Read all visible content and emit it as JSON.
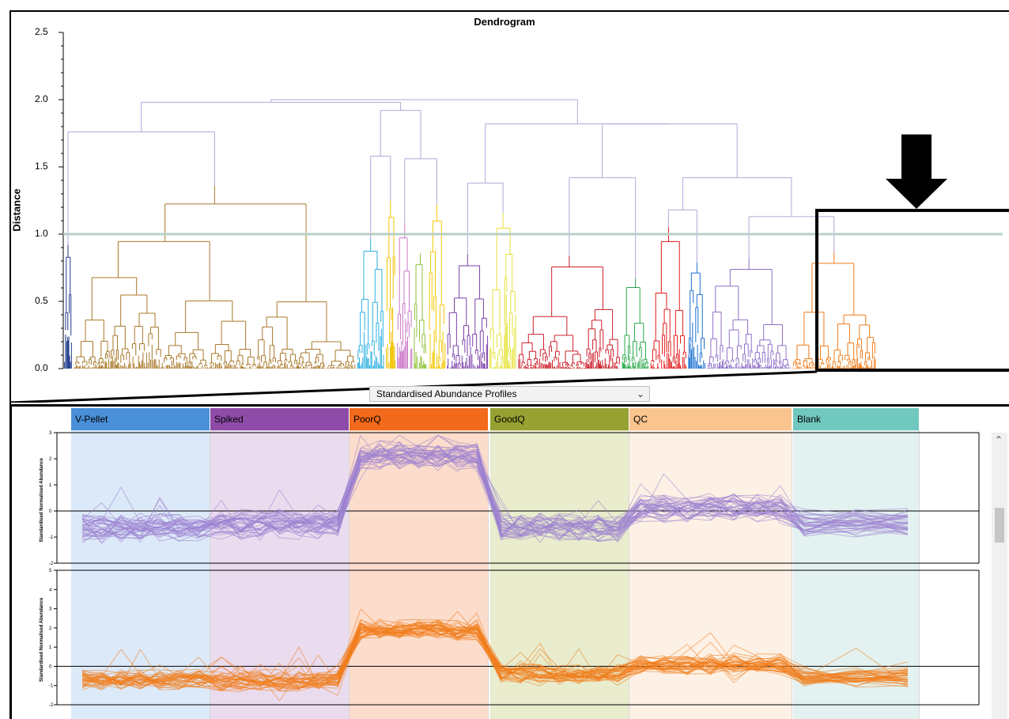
{
  "chart_data": [
    {
      "type": "dendrogram",
      "title": "Dendrogram",
      "ylabel": "Distance",
      "ylim": [
        0,
        2.5
      ],
      "yticks": [
        0.0,
        0.5,
        1.0,
        1.5,
        2.0,
        2.5
      ],
      "ytick_labels": [
        "0.0",
        "0.5",
        "1.0",
        "1.5",
        "2.0",
        "2.5"
      ],
      "cut_height": 1.0,
      "clusters": [
        {
          "color": "#1f3a8a",
          "from": 0.0,
          "to": 0.01,
          "top": 0.92
        },
        {
          "color": "#a8782a",
          "from": 0.01,
          "to": 0.31,
          "top": 1.36
        },
        {
          "color": "#2ab0e0",
          "from": 0.31,
          "to": 0.34,
          "top": 0.97
        },
        {
          "color": "#f2c200",
          "from": 0.34,
          "to": 0.352,
          "top": 1.25
        },
        {
          "color": "#cc77c8",
          "from": 0.352,
          "to": 0.37,
          "top": 1.08
        },
        {
          "color": "#8fc23b",
          "from": 0.37,
          "to": 0.385,
          "top": 0.86
        },
        {
          "color": "#f5c800",
          "from": 0.385,
          "to": 0.405,
          "top": 1.22
        },
        {
          "color": "#7a3fa8",
          "from": 0.405,
          "to": 0.45,
          "top": 0.85
        },
        {
          "color": "#e6e23a",
          "from": 0.45,
          "to": 0.48,
          "top": 1.16
        },
        {
          "color": "#cc1f2a",
          "from": 0.48,
          "to": 0.59,
          "top": 0.84
        },
        {
          "color": "#2aa84a",
          "from": 0.59,
          "to": 0.62,
          "top": 0.67
        },
        {
          "color": "#e21a1a",
          "from": 0.62,
          "to": 0.66,
          "top": 1.05
        },
        {
          "color": "#1a6fd0",
          "from": 0.66,
          "to": 0.68,
          "top": 0.79
        },
        {
          "color": "#8f6fc8",
          "from": 0.68,
          "to": 0.77,
          "top": 0.82
        },
        {
          "color": "#f07b1a",
          "from": 0.77,
          "to": 0.86,
          "top": 0.87
        }
      ],
      "annotation": "highlighted-clusters-box"
    },
    {
      "type": "line",
      "selector_value": "Standardised Abundance Profiles",
      "ylabel": "Standardised Normalised Abundance",
      "conditions": [
        {
          "name": "V-Pellet",
          "header_color": "#4a90d9",
          "bg_color": "#dce9f8"
        },
        {
          "name": "Spiked",
          "header_color": "#8e4ba8",
          "bg_color": "#eadcee"
        },
        {
          "name": "PoorQ",
          "header_color": "#f26a1b",
          "bg_color": "#fcdccb"
        },
        {
          "name": "GoodQ",
          "header_color": "#97a132",
          "bg_color": "#e9eccd"
        },
        {
          "name": "QC",
          "header_color": "#f9c48e",
          "bg_color": "#fdf1e5"
        },
        {
          "name": "Blank",
          "header_color": "#71c8bf",
          "bg_color": "#e3f2f0"
        }
      ],
      "panels": [
        {
          "series_color": "#9b7fd0",
          "ylim": [
            -2,
            3
          ],
          "yticks": [
            "3",
            "2",
            "1",
            "0",
            "-1",
            "-2"
          ],
          "mean_profile": {
            "V-Pellet": -0.65,
            "Spiked": -0.5,
            "PoorQ": 2.1,
            "GoodQ": -0.65,
            "QC": 0.1,
            "Blank": -0.45
          }
        },
        {
          "series_color": "#f07b1a",
          "ylim": [
            -2,
            5
          ],
          "yticks": [
            "5",
            "4",
            "3",
            "2",
            "1",
            "0",
            "-1",
            "-2"
          ],
          "mean_profile": {
            "V-Pellet": -0.7,
            "Spiked": -0.75,
            "PoorQ": 1.9,
            "GoodQ": -0.4,
            "QC": 0.1,
            "Blank": -0.55
          }
        }
      ]
    }
  ]
}
